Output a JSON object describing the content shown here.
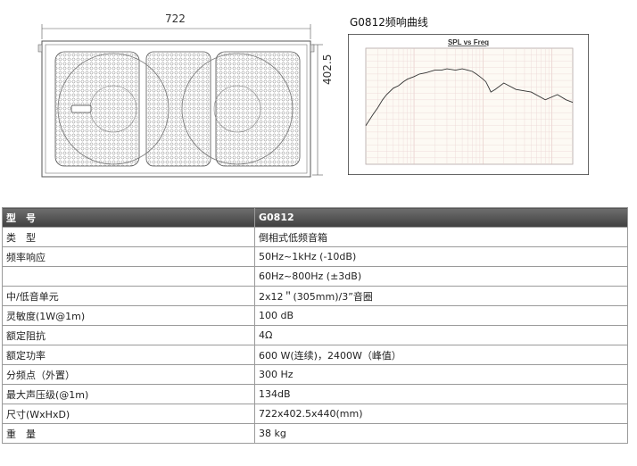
{
  "drawing": {
    "width_label": "722",
    "height_label": "402.5"
  },
  "freq_response": {
    "title": "G0812频响曲线",
    "chart_data": {
      "type": "line",
      "title": "SPL vs Freq",
      "xlabel": "",
      "ylabel": "",
      "x_scale": "log",
      "xlim": [
        20,
        20000
      ],
      "grid": true,
      "series": [
        {
          "x": [
            20,
            25,
            30,
            35,
            40,
            50,
            60,
            70,
            80,
            100,
            120,
            150,
            200,
            250,
            300,
            400,
            500,
            600,
            700,
            800,
            900,
            1000,
            1100,
            1200,
            1300,
            1500,
            2000,
            3000,
            5000,
            8000,
            12000,
            16000,
            20000
          ],
          "y": [
            50,
            58,
            64,
            70,
            74,
            79,
            81,
            84,
            86,
            88,
            90,
            91,
            93,
            93,
            94,
            93,
            94,
            93,
            92,
            90,
            88,
            86,
            84,
            80,
            76,
            78,
            83,
            78,
            76,
            70,
            74,
            70,
            68
          ]
        }
      ]
    }
  },
  "spec_table": {
    "header": [
      "型　号",
      "G0812"
    ],
    "rows": [
      [
        "类　型",
        "倒相式低频音箱"
      ],
      [
        "频率响应",
        "50Hz~1kHz (-10dB)"
      ],
      [
        "",
        "60Hz~800Hz (±3dB)"
      ],
      [
        "中/低音单元",
        "2x12＂(305mm)/3”音圈"
      ],
      [
        "灵敏度(1W@1m)",
        "100 dB"
      ],
      [
        "额定阻抗",
        "4Ω"
      ],
      [
        "额定功率",
        "600 W(连续)，2400W（峰值）"
      ],
      [
        "分频点（外置）",
        "300 Hz"
      ],
      [
        "最大声压级(@1m)",
        "134dB"
      ],
      [
        "尺寸(WxHxD)",
        "722x402.5x440(mm)"
      ],
      [
        "重　量",
        "38 kg"
      ]
    ]
  }
}
